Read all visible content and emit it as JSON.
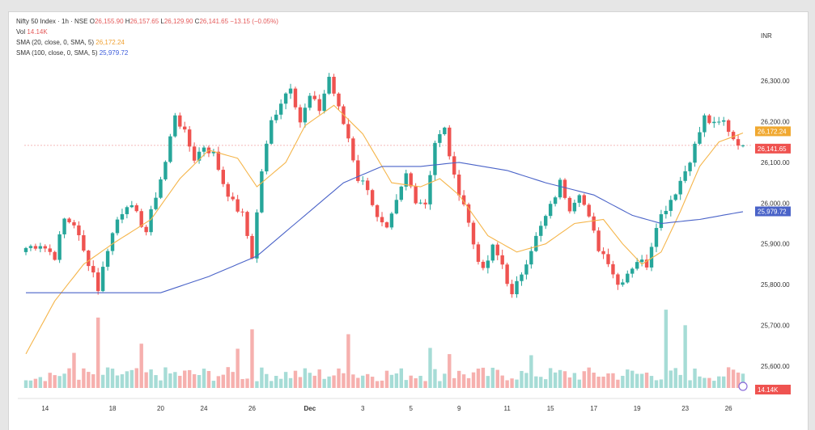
{
  "header": {
    "symbol": "Nifty 50 Index · 1h · NSE",
    "ohlc": {
      "o_label": "O",
      "o": "26,155.90",
      "h_label": "H",
      "h": "26,157.65",
      "l_label": "L",
      "l": "26,129.90",
      "c_label": "C",
      "c": "26,141.65",
      "change": "−13.15 (−0.05%)"
    },
    "vol": {
      "label": "Vol",
      "value": "14.14K"
    },
    "sma20": {
      "label": "SMA (20, close, 0, SMA, 5)",
      "value": "26,172.24"
    },
    "sma100": {
      "label": "SMA (100, close, 0, SMA, 5)",
      "value": "25,979.72"
    },
    "currency": "INR"
  },
  "colors": {
    "up": "#26a69a",
    "down": "#ef5350",
    "vol_up": "#a6dcd6",
    "vol_down": "#f6b0ae",
    "sma20": "#f5b54a",
    "sma100": "#4a63c8",
    "price_line": "#f0a0a0"
  },
  "chart_data": {
    "type": "candlestick",
    "y_axis": {
      "min": 25550,
      "max": 26350,
      "ticks": [
        26300,
        26200,
        26100,
        26000,
        25900,
        25800,
        25700,
        25600
      ],
      "tick_labels": [
        "26,300.00",
        "26,200.00",
        "26,100.00",
        "26,000.00",
        "25,900.00",
        "25,800.00",
        "25,700.00",
        "25,600.00"
      ]
    },
    "x_axis": {
      "labels": [
        "14",
        "18",
        "20",
        "24",
        "26",
        "Dec",
        "3",
        "5",
        "9",
        "11",
        "15",
        "17",
        "19",
        "23",
        "26"
      ],
      "label_index": [
        4,
        18,
        28,
        37,
        47,
        59,
        70,
        80,
        90,
        100,
        109,
        118,
        127,
        137,
        146
      ]
    },
    "badges": [
      {
        "name": "sma20",
        "value": 26172.24,
        "text": "26,172.24"
      },
      {
        "name": "last",
        "value": 26141.65,
        "text": "26,141.65"
      },
      {
        "name": "sma100",
        "value": 25979.72,
        "text": "25,979.72"
      },
      {
        "name": "volume",
        "text": "14.14K"
      }
    ],
    "anchors": [
      [
        0,
        25890
      ],
      [
        3,
        25900
      ],
      [
        6,
        25870
      ],
      [
        8,
        25960
      ],
      [
        10,
        25950
      ],
      [
        12,
        25880
      ],
      [
        14,
        25830
      ],
      [
        15,
        25790
      ],
      [
        17,
        25890
      ],
      [
        19,
        25960
      ],
      [
        21,
        26000
      ],
      [
        23,
        25970
      ],
      [
        25,
        25930
      ],
      [
        27,
        26020
      ],
      [
        29,
        26100
      ],
      [
        31,
        26220
      ],
      [
        33,
        26170
      ],
      [
        35,
        26110
      ],
      [
        37,
        26140
      ],
      [
        39,
        26120
      ],
      [
        41,
        26050
      ],
      [
        43,
        26000
      ],
      [
        45,
        25970
      ],
      [
        47,
        25870
      ],
      [
        49,
        26080
      ],
      [
        51,
        26200
      ],
      [
        53,
        26250
      ],
      [
        55,
        26290
      ],
      [
        57,
        26200
      ],
      [
        59,
        26260
      ],
      [
        61,
        26230
      ],
      [
        63,
        26310
      ],
      [
        65,
        26230
      ],
      [
        67,
        26160
      ],
      [
        69,
        26060
      ],
      [
        71,
        26040
      ],
      [
        73,
        25960
      ],
      [
        75,
        25930
      ],
      [
        77,
        26000
      ],
      [
        79,
        26070
      ],
      [
        81,
        26010
      ],
      [
        83,
        26000
      ],
      [
        85,
        26150
      ],
      [
        87,
        26180
      ],
      [
        89,
        26060
      ],
      [
        91,
        26000
      ],
      [
        93,
        25900
      ],
      [
        95,
        25830
      ],
      [
        97,
        25890
      ],
      [
        99,
        25850
      ],
      [
        101,
        25770
      ],
      [
        103,
        25830
      ],
      [
        105,
        25890
      ],
      [
        107,
        25940
      ],
      [
        109,
        25990
      ],
      [
        111,
        26050
      ],
      [
        113,
        25990
      ],
      [
        115,
        26030
      ],
      [
        117,
        25960
      ],
      [
        119,
        25890
      ],
      [
        121,
        25860
      ],
      [
        123,
        25800
      ],
      [
        125,
        25830
      ],
      [
        127,
        25860
      ],
      [
        129,
        25850
      ],
      [
        131,
        25950
      ],
      [
        133,
        25990
      ],
      [
        135,
        26030
      ],
      [
        137,
        26080
      ],
      [
        139,
        26140
      ],
      [
        141,
        26210
      ],
      [
        143,
        26190
      ],
      [
        145,
        26200
      ],
      [
        147,
        26160
      ],
      [
        149,
        26141
      ]
    ],
    "sma20_anchors": [
      [
        0,
        25630
      ],
      [
        6,
        25760
      ],
      [
        12,
        25850
      ],
      [
        18,
        25900
      ],
      [
        26,
        25960
      ],
      [
        32,
        26060
      ],
      [
        38,
        26130
      ],
      [
        44,
        26110
      ],
      [
        48,
        26040
      ],
      [
        54,
        26100
      ],
      [
        58,
        26190
      ],
      [
        64,
        26240
      ],
      [
        70,
        26170
      ],
      [
        76,
        26050
      ],
      [
        82,
        26040
      ],
      [
        86,
        26060
      ],
      [
        90,
        26020
      ],
      [
        96,
        25920
      ],
      [
        102,
        25880
      ],
      [
        108,
        25900
      ],
      [
        114,
        25950
      ],
      [
        120,
        25960
      ],
      [
        124,
        25900
      ],
      [
        128,
        25850
      ],
      [
        132,
        25880
      ],
      [
        136,
        25980
      ],
      [
        140,
        26090
      ],
      [
        144,
        26150
      ],
      [
        149,
        26172
      ]
    ],
    "sma100_anchors": [
      [
        0,
        25780
      ],
      [
        20,
        25780
      ],
      [
        28,
        25780
      ],
      [
        38,
        25820
      ],
      [
        48,
        25870
      ],
      [
        58,
        25970
      ],
      [
        66,
        26050
      ],
      [
        74,
        26090
      ],
      [
        82,
        26090
      ],
      [
        90,
        26100
      ],
      [
        100,
        26080
      ],
      [
        108,
        26050
      ],
      [
        118,
        26020
      ],
      [
        126,
        25970
      ],
      [
        132,
        25950
      ],
      [
        140,
        25960
      ],
      [
        149,
        25979
      ]
    ],
    "volumes_note": "volume histogram"
  }
}
